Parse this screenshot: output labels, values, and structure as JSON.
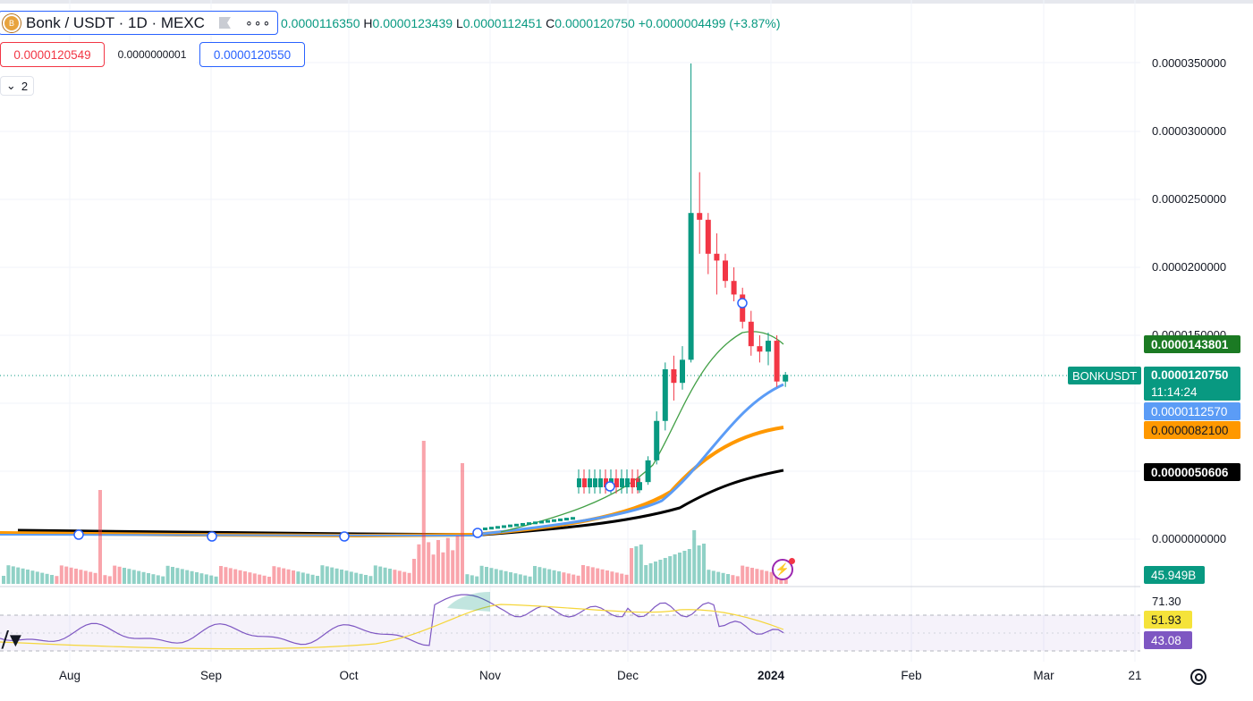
{
  "symbol": {
    "title": "Bonk / USDT · 1D · MEXC",
    "icon": "bonk-coin-icon",
    "more_label": "∘∘∘"
  },
  "ohlc": {
    "open_value": "0.0000116350",
    "high_label": "H",
    "high_value": "0.0000123439",
    "low_label": "L",
    "low_value": "0.0000112451",
    "close_label": "C",
    "close_value": "0.0000120750",
    "change": "+0.0000004499 (+3.87%)"
  },
  "trade": {
    "sell_price": "0.0000120549",
    "spread": "0.0000000001",
    "buy_price": "0.0000120550"
  },
  "indicators_toggle": {
    "count": "2",
    "icon": "chevron-down-icon"
  },
  "price_axis": {
    "ticks": [
      {
        "label": "0.0000350000",
        "value": 35
      },
      {
        "label": "0.0000300000",
        "value": 30
      },
      {
        "label": "0.0000250000",
        "value": 25
      },
      {
        "label": "0.0000200000",
        "value": 20
      },
      {
        "label": "0.0000150000",
        "value": 15
      },
      {
        "label": "0.0000000000",
        "value": 0
      }
    ]
  },
  "price_tags": {
    "ma_green": "0.0000143801",
    "symbol_label": "BONKUSDT",
    "last_price": "0.0000120750",
    "countdown": "11:14:24",
    "ma_blue": "0.0000112570",
    "ma_orange": "0.0000082100",
    "ma_black": "0.0000050606",
    "volume": "45.949B"
  },
  "rsi": {
    "top_tick": "71.30",
    "ma_value": "51.93",
    "rsi_value": "43.08"
  },
  "time_axis": {
    "labels": [
      "Aug",
      "Sep",
      "Oct",
      "Nov",
      "Dec",
      "2024",
      "Feb",
      "Mar",
      "21"
    ]
  },
  "colors": {
    "up": "#089981",
    "down": "#f23645",
    "ma_green": "#43a047",
    "ma_blue": "#5b9cf6",
    "ma_orange": "#ff9800",
    "ma_black": "#000000",
    "rsi_line": "#7e57c2",
    "rsi_ma": "#f5d63a"
  },
  "chart_data": {
    "type": "candlestick",
    "unit": "price ×1e-6 USDT",
    "candles": [
      {
        "period": "Nov-late",
        "o": 3.6,
        "h": 4.6,
        "l": 3.4,
        "c": 4.2
      },
      {
        "period": "Dec-early",
        "o": 4.2,
        "h": 6.1,
        "l": 4.0,
        "c": 5.8
      },
      {
        "period": "Dec-early",
        "o": 5.8,
        "h": 9.4,
        "l": 5.5,
        "c": 8.7
      },
      {
        "period": "Dec-mid",
        "o": 8.7,
        "h": 13.0,
        "l": 8.0,
        "c": 12.5
      },
      {
        "period": "Dec-mid",
        "o": 12.5,
        "h": 13.5,
        "l": 10.2,
        "c": 11.5
      },
      {
        "period": "Dec-mid",
        "o": 11.5,
        "h": 14.2,
        "l": 11.0,
        "c": 13.2
      },
      {
        "period": "Dec-mid",
        "o": 13.2,
        "h": 35.0,
        "l": 13.0,
        "c": 24.0
      },
      {
        "period": "Dec-mid",
        "o": 24.0,
        "h": 27.0,
        "l": 21.0,
        "c": 23.5
      },
      {
        "period": "Dec-late",
        "o": 23.5,
        "h": 24.0,
        "l": 19.5,
        "c": 21.0
      },
      {
        "period": "Dec-late",
        "o": 21.0,
        "h": 22.5,
        "l": 18.0,
        "c": 20.5
      },
      {
        "period": "Dec-late",
        "o": 20.5,
        "h": 21.0,
        "l": 18.5,
        "c": 19.0
      },
      {
        "period": "Dec-late",
        "o": 19.0,
        "h": 20.0,
        "l": 17.5,
        "c": 18.0
      },
      {
        "period": "Dec-late",
        "o": 18.0,
        "h": 18.5,
        "l": 15.5,
        "c": 16.0
      },
      {
        "period": "Dec-late",
        "o": 16.0,
        "h": 16.8,
        "l": 13.5,
        "c": 14.2
      },
      {
        "period": "Jan-early",
        "o": 14.2,
        "h": 15.0,
        "l": 13.0,
        "c": 13.8
      },
      {
        "period": "Jan-early",
        "o": 13.8,
        "h": 15.2,
        "l": 12.8,
        "c": 14.6
      },
      {
        "period": "Jan-early",
        "o": 14.6,
        "h": 15.0,
        "l": 11.2,
        "c": 11.6
      },
      {
        "period": "Jan-early",
        "o": 11.6,
        "h": 12.3,
        "l": 11.2,
        "c": 12.1
      }
    ],
    "moving_averages": [
      {
        "color": "green",
        "last": 14.3801
      },
      {
        "color": "blue",
        "last": 11.257
      },
      {
        "color": "orange",
        "last": 8.21
      },
      {
        "color": "black",
        "last": 5.0606
      }
    ],
    "ylim": [
      0,
      37
    ]
  }
}
